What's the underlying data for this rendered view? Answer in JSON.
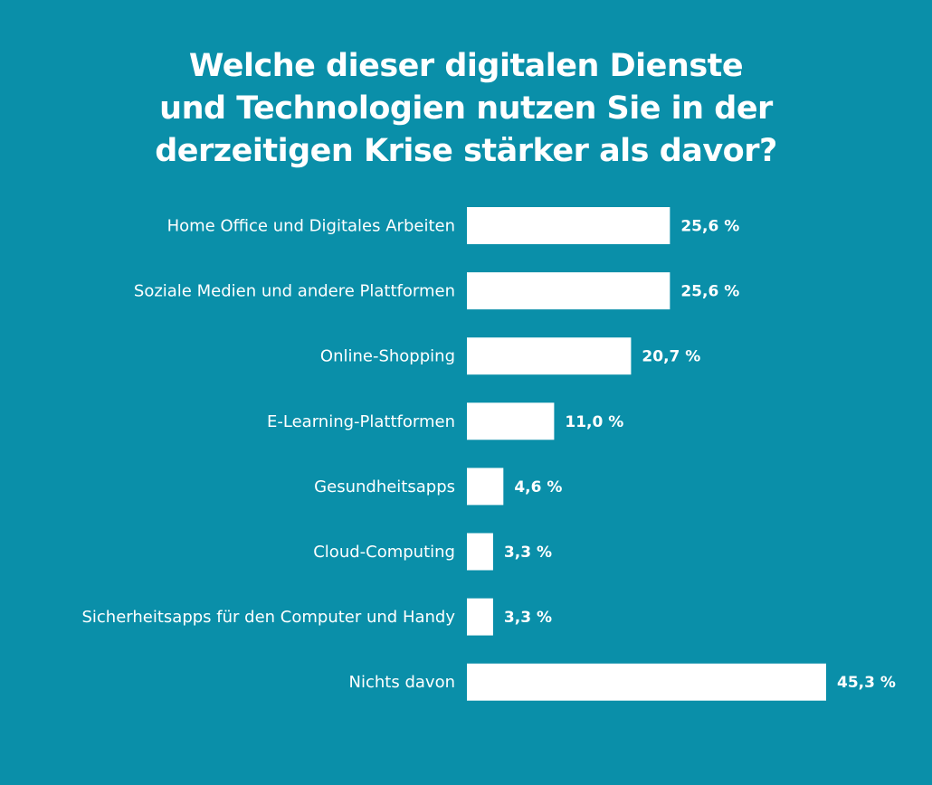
{
  "colors": {
    "background": "#0a8fa9",
    "bar": "#ffffff",
    "text": "#ffffff"
  },
  "chart_data": {
    "type": "bar",
    "orientation": "horizontal",
    "title_lines": [
      "Welche dieser digitalen Dienste",
      "und Technologien nutzen Sie in der",
      "derzeitigen Krise stärker als davor?"
    ],
    "title": "Welche dieser digitalen Dienste und Technologien nutzen Sie in der derzeitigen Krise stärker als davor?",
    "xlabel": "",
    "ylabel": "",
    "grid": false,
    "legend": "none",
    "xlim": [
      0,
      45.3
    ],
    "unit": "%",
    "categories": [
      "Home Office und Digitales Arbeiten",
      "Soziale Medien und andere Plattformen",
      "Online-Shopping",
      "E-Learning-Plattformen",
      "Gesundheitsapps",
      "Cloud-Computing",
      "Sicherheitsapps für den Computer und Handy",
      "Nichts davon"
    ],
    "values": [
      25.6,
      25.6,
      20.7,
      11.0,
      4.6,
      3.3,
      3.3,
      45.3
    ],
    "value_labels": [
      "25,6 %",
      "25,6 %",
      "20,7 %",
      "11,0 %",
      "4,6 %",
      "3,3 %",
      "3,3 %",
      "45,3 %"
    ]
  }
}
